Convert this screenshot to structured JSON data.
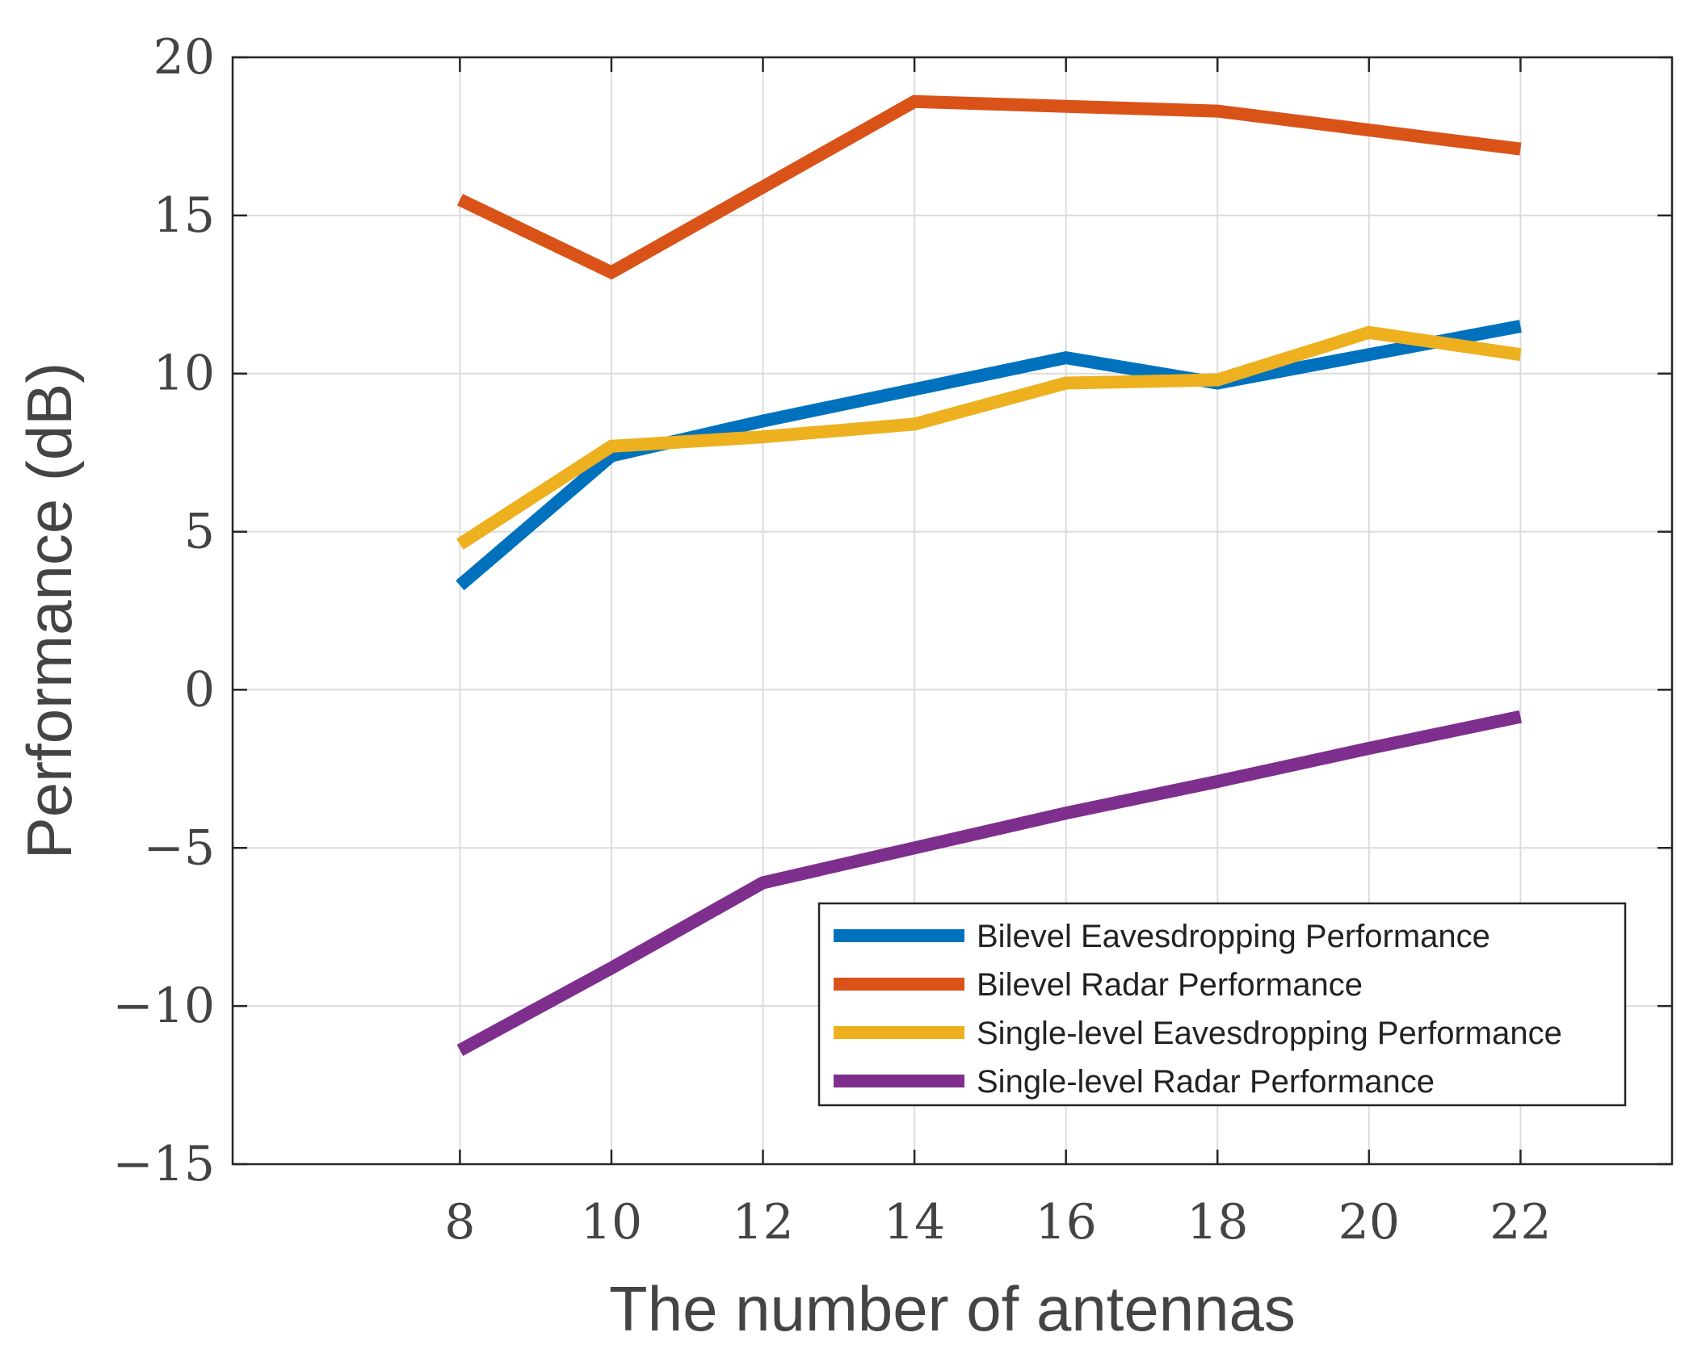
{
  "chart_data": {
    "type": "line",
    "title": "",
    "xlabel": "The number of antennas",
    "ylabel": "Performance (dB)",
    "x": [
      8,
      10,
      12,
      14,
      16,
      18,
      20,
      22
    ],
    "xlim": [
      5,
      24
    ],
    "ylim": [
      -15,
      20
    ],
    "xticks": [
      8,
      10,
      12,
      14,
      16,
      18,
      20,
      22
    ],
    "yticks": [
      20,
      15,
      10,
      5,
      0,
      -5,
      -10,
      -15
    ],
    "ytick_labels": [
      "20",
      "15",
      "10",
      "5",
      "0",
      "−5",
      "−10",
      "−15"
    ],
    "grid": true,
    "legend_position": "bottom-right",
    "series": [
      {
        "name": "Bilevel Eavesdropping Performance",
        "color": "#0072BD",
        "values": [
          3.3,
          7.4,
          8.5,
          9.5,
          10.5,
          9.7,
          10.6,
          11.5
        ]
      },
      {
        "name": "Bilevel Radar Performance",
        "color": "#D95319",
        "values": [
          15.5,
          13.2,
          15.9,
          18.6,
          18.45,
          18.3,
          17.7,
          17.1
        ]
      },
      {
        "name": "Single-level Eavesdropping Performance",
        "color": "#EDB120",
        "values": [
          4.6,
          7.7,
          8.0,
          8.4,
          9.7,
          9.8,
          11.3,
          10.6
        ]
      },
      {
        "name": "Single-level Radar Performance",
        "color": "#7E2F8E",
        "values": [
          -11.4,
          -8.8,
          -6.1,
          -5.0,
          -3.9,
          -2.9,
          -1.85,
          -0.85
        ]
      }
    ]
  }
}
